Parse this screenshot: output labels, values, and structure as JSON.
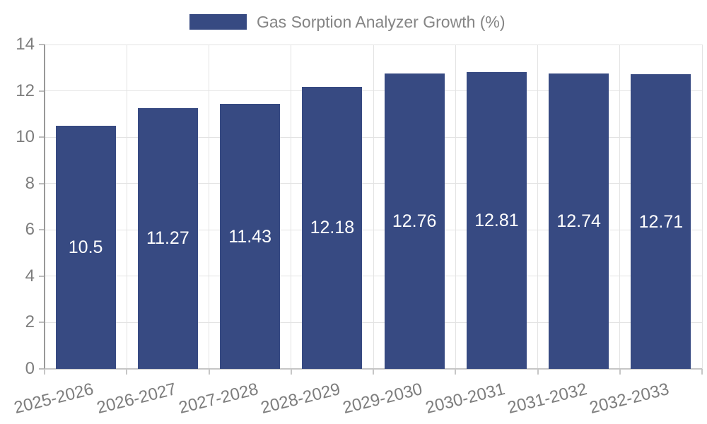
{
  "legend": {
    "label": "Gas Sorption Analyzer Growth (%)"
  },
  "colors": {
    "bar": "#374a82",
    "grid": "#e3e3e3",
    "axis": "#c6c6c6",
    "spine": "#999999",
    "tick_mark": "#bdbdbd",
    "tick_text": "#7d7d7d",
    "legend_text": "#858585",
    "value_text": "#ffffff",
    "background": "#ffffff"
  },
  "chart_data": {
    "type": "bar",
    "title": "Gas Sorption Analyzer Growth (%)",
    "categories": [
      "2025-2026",
      "2026-2027",
      "2027-2028",
      "2028-2029",
      "2029-2030",
      "2030-2031",
      "2031-2032",
      "2032-2033"
    ],
    "values": [
      10.5,
      11.27,
      11.43,
      12.18,
      12.76,
      12.81,
      12.74,
      12.71
    ],
    "value_labels": [
      "10.5",
      "11.27",
      "11.43",
      "12.18",
      "12.76",
      "12.81",
      "12.74",
      "12.71"
    ],
    "xlabel": "",
    "ylabel": "",
    "ylim": [
      0,
      14
    ],
    "yticks": [
      0,
      2,
      4,
      6,
      8,
      10,
      12,
      14
    ],
    "grid": "horizontal-and-vertical",
    "legend_position": "top-center",
    "bar_label_position": "inside-center"
  }
}
